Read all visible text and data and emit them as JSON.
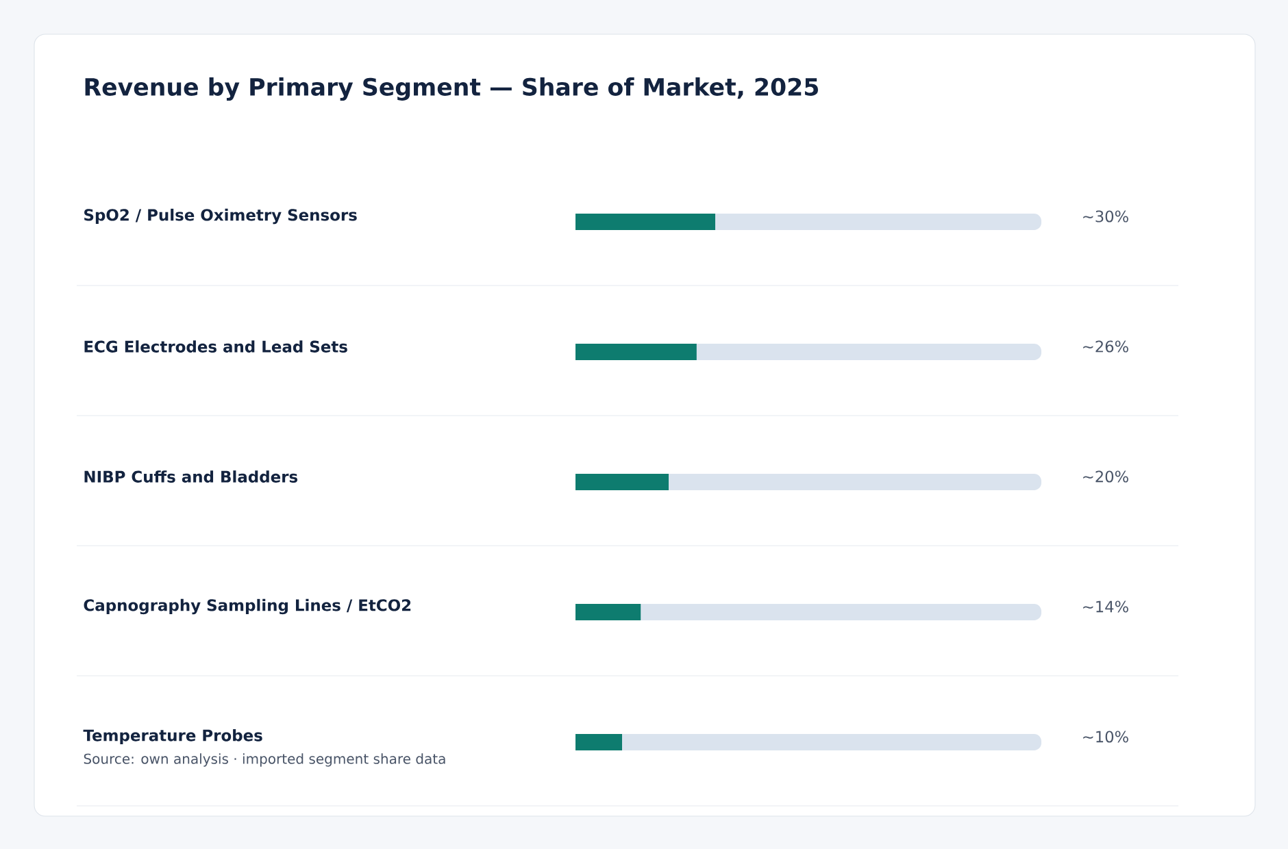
{
  "chart_data": {
    "type": "bar",
    "orientation": "horizontal",
    "title": "Revenue by Primary Segment — Share of Market, 2025",
    "categories": [
      "SpO2 / Pulse Oximetry Sensors",
      "ECG Electrodes and Lead Sets",
      "NIBP Cuffs and Bladders",
      "Capnography Sampling Lines / EtCO2",
      "Temperature Probes"
    ],
    "values": [
      30,
      26,
      20,
      14,
      10
    ],
    "value_labels": [
      "~30%",
      "~26%",
      "~20%",
      "~14%",
      "~10%"
    ],
    "color": "#0e7c6f",
    "xlim": [
      0,
      100
    ],
    "annotations": [
      "Source: own analysis · imported segment share data"
    ]
  }
}
